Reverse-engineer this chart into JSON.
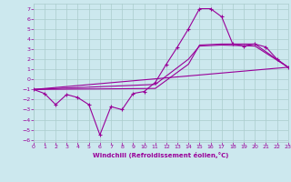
{
  "xlabel": "Windchill (Refroidissement éolien,°C)",
  "background_color": "#cce8ee",
  "grid_color": "#aacccc",
  "line_color": "#990099",
  "xlim": [
    0,
    23
  ],
  "ylim": [
    -6.2,
    7.5
  ],
  "x_ticks": [
    0,
    1,
    2,
    3,
    4,
    5,
    6,
    7,
    8,
    9,
    10,
    11,
    12,
    13,
    14,
    15,
    16,
    17,
    18,
    19,
    20,
    21,
    22,
    23
  ],
  "y_ticks": [
    -6,
    -5,
    -4,
    -3,
    -2,
    -1,
    0,
    1,
    2,
    3,
    4,
    5,
    6,
    7
  ],
  "series1_x": [
    0,
    1,
    2,
    3,
    4,
    5,
    6,
    7,
    8,
    9,
    10,
    11,
    12,
    13,
    14,
    15,
    16,
    17,
    18,
    19,
    20,
    21,
    22,
    23
  ],
  "series1_y": [
    -1.0,
    -1.4,
    -2.5,
    -1.5,
    -1.8,
    -2.5,
    -5.5,
    -2.7,
    -3.0,
    -1.4,
    -1.2,
    -0.3,
    1.5,
    3.2,
    5.0,
    7.0,
    7.0,
    6.2,
    3.5,
    3.3,
    3.5,
    3.2,
    2.0,
    1.2
  ],
  "series2_x": [
    0,
    23
  ],
  "series2_y": [
    -1.0,
    1.2
  ],
  "series3_x": [
    0,
    11,
    14,
    15,
    17,
    20,
    23
  ],
  "series3_y": [
    -1.0,
    -0.5,
    2.0,
    3.3,
    3.4,
    3.3,
    1.2
  ],
  "series4_x": [
    0,
    11,
    14,
    15,
    17,
    20,
    23
  ],
  "series4_y": [
    -1.0,
    -0.9,
    1.5,
    3.4,
    3.5,
    3.5,
    1.2
  ]
}
